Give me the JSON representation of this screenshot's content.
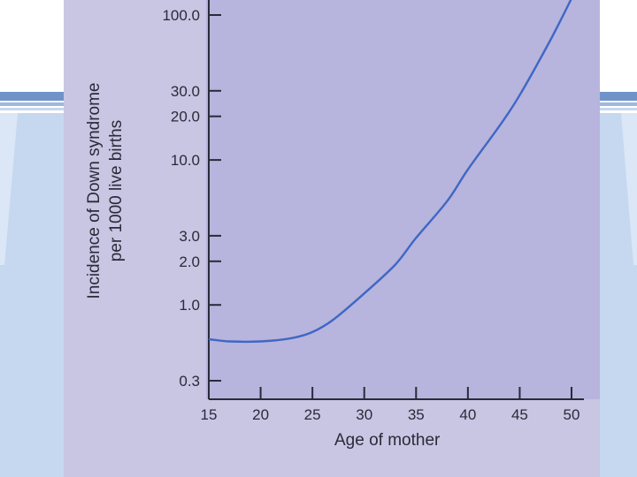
{
  "chart_data": {
    "type": "line",
    "xlabel": "Age of mother",
    "ylabel_lines": [
      "Incidence of Down syndrome",
      "per 1000 live births"
    ],
    "y_scale": "log",
    "xlim": [
      15,
      50
    ],
    "ylim": [
      0.3,
      100
    ],
    "x_ticks": [
      15,
      20,
      25,
      30,
      35,
      40,
      45,
      50
    ],
    "x_tick_labels": [
      "15",
      "20",
      "25",
      "30",
      "35",
      "40",
      "45",
      "50"
    ],
    "y_ticks": [
      0.3,
      1,
      2,
      3,
      10,
      20,
      30,
      100
    ],
    "y_tick_labels": [
      "0.3",
      "1.0",
      "2.0",
      "3.0",
      "10.0",
      "20.0",
      "30.0",
      "100.0"
    ],
    "line_color": "#3f67c5",
    "series": [
      {
        "x": [
          15,
          17,
          20,
          23,
          25,
          27,
          30,
          33,
          35,
          38,
          40,
          43,
          45,
          48,
          50
        ],
        "y": [
          0.58,
          0.56,
          0.56,
          0.59,
          0.65,
          0.79,
          1.2,
          1.9,
          2.9,
          5.2,
          8.6,
          17,
          28,
          68,
          130
        ]
      }
    ]
  }
}
